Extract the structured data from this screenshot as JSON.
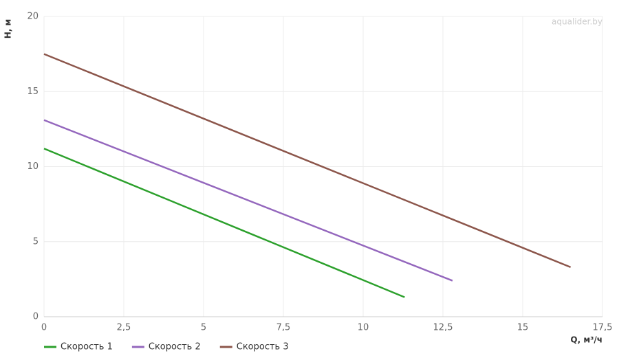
{
  "chart_data": {
    "type": "line",
    "x_label": "Q, м³/ч",
    "y_label": "H, м",
    "watermark": "aqualider.by",
    "xlim": [
      0,
      17.5
    ],
    "ylim": [
      0,
      20
    ],
    "xticks": [
      0,
      {
        "value": 2.5,
        "label": "2,5"
      },
      5,
      {
        "value": 7.5,
        "label": "7,5"
      },
      10,
      {
        "value": 12.5,
        "label": "12,5"
      },
      15,
      {
        "value": 17.5,
        "label": "17,5"
      }
    ],
    "yticks": [
      0,
      5,
      10,
      15,
      20
    ],
    "grid": true,
    "legend": "bottom-left",
    "series": [
      {
        "name": "Скорость 1",
        "color": "#2ca02c",
        "x": [
          0,
          11.3
        ],
        "values": [
          11.2,
          1.3
        ]
      },
      {
        "name": "Скорость 2",
        "color": "#9467bd",
        "x": [
          0,
          12.8
        ],
        "values": [
          13.1,
          2.4
        ]
      },
      {
        "name": "Скорость 3",
        "color": "#8c564b",
        "x": [
          0,
          16.5
        ],
        "values": [
          17.5,
          3.3
        ]
      }
    ]
  }
}
